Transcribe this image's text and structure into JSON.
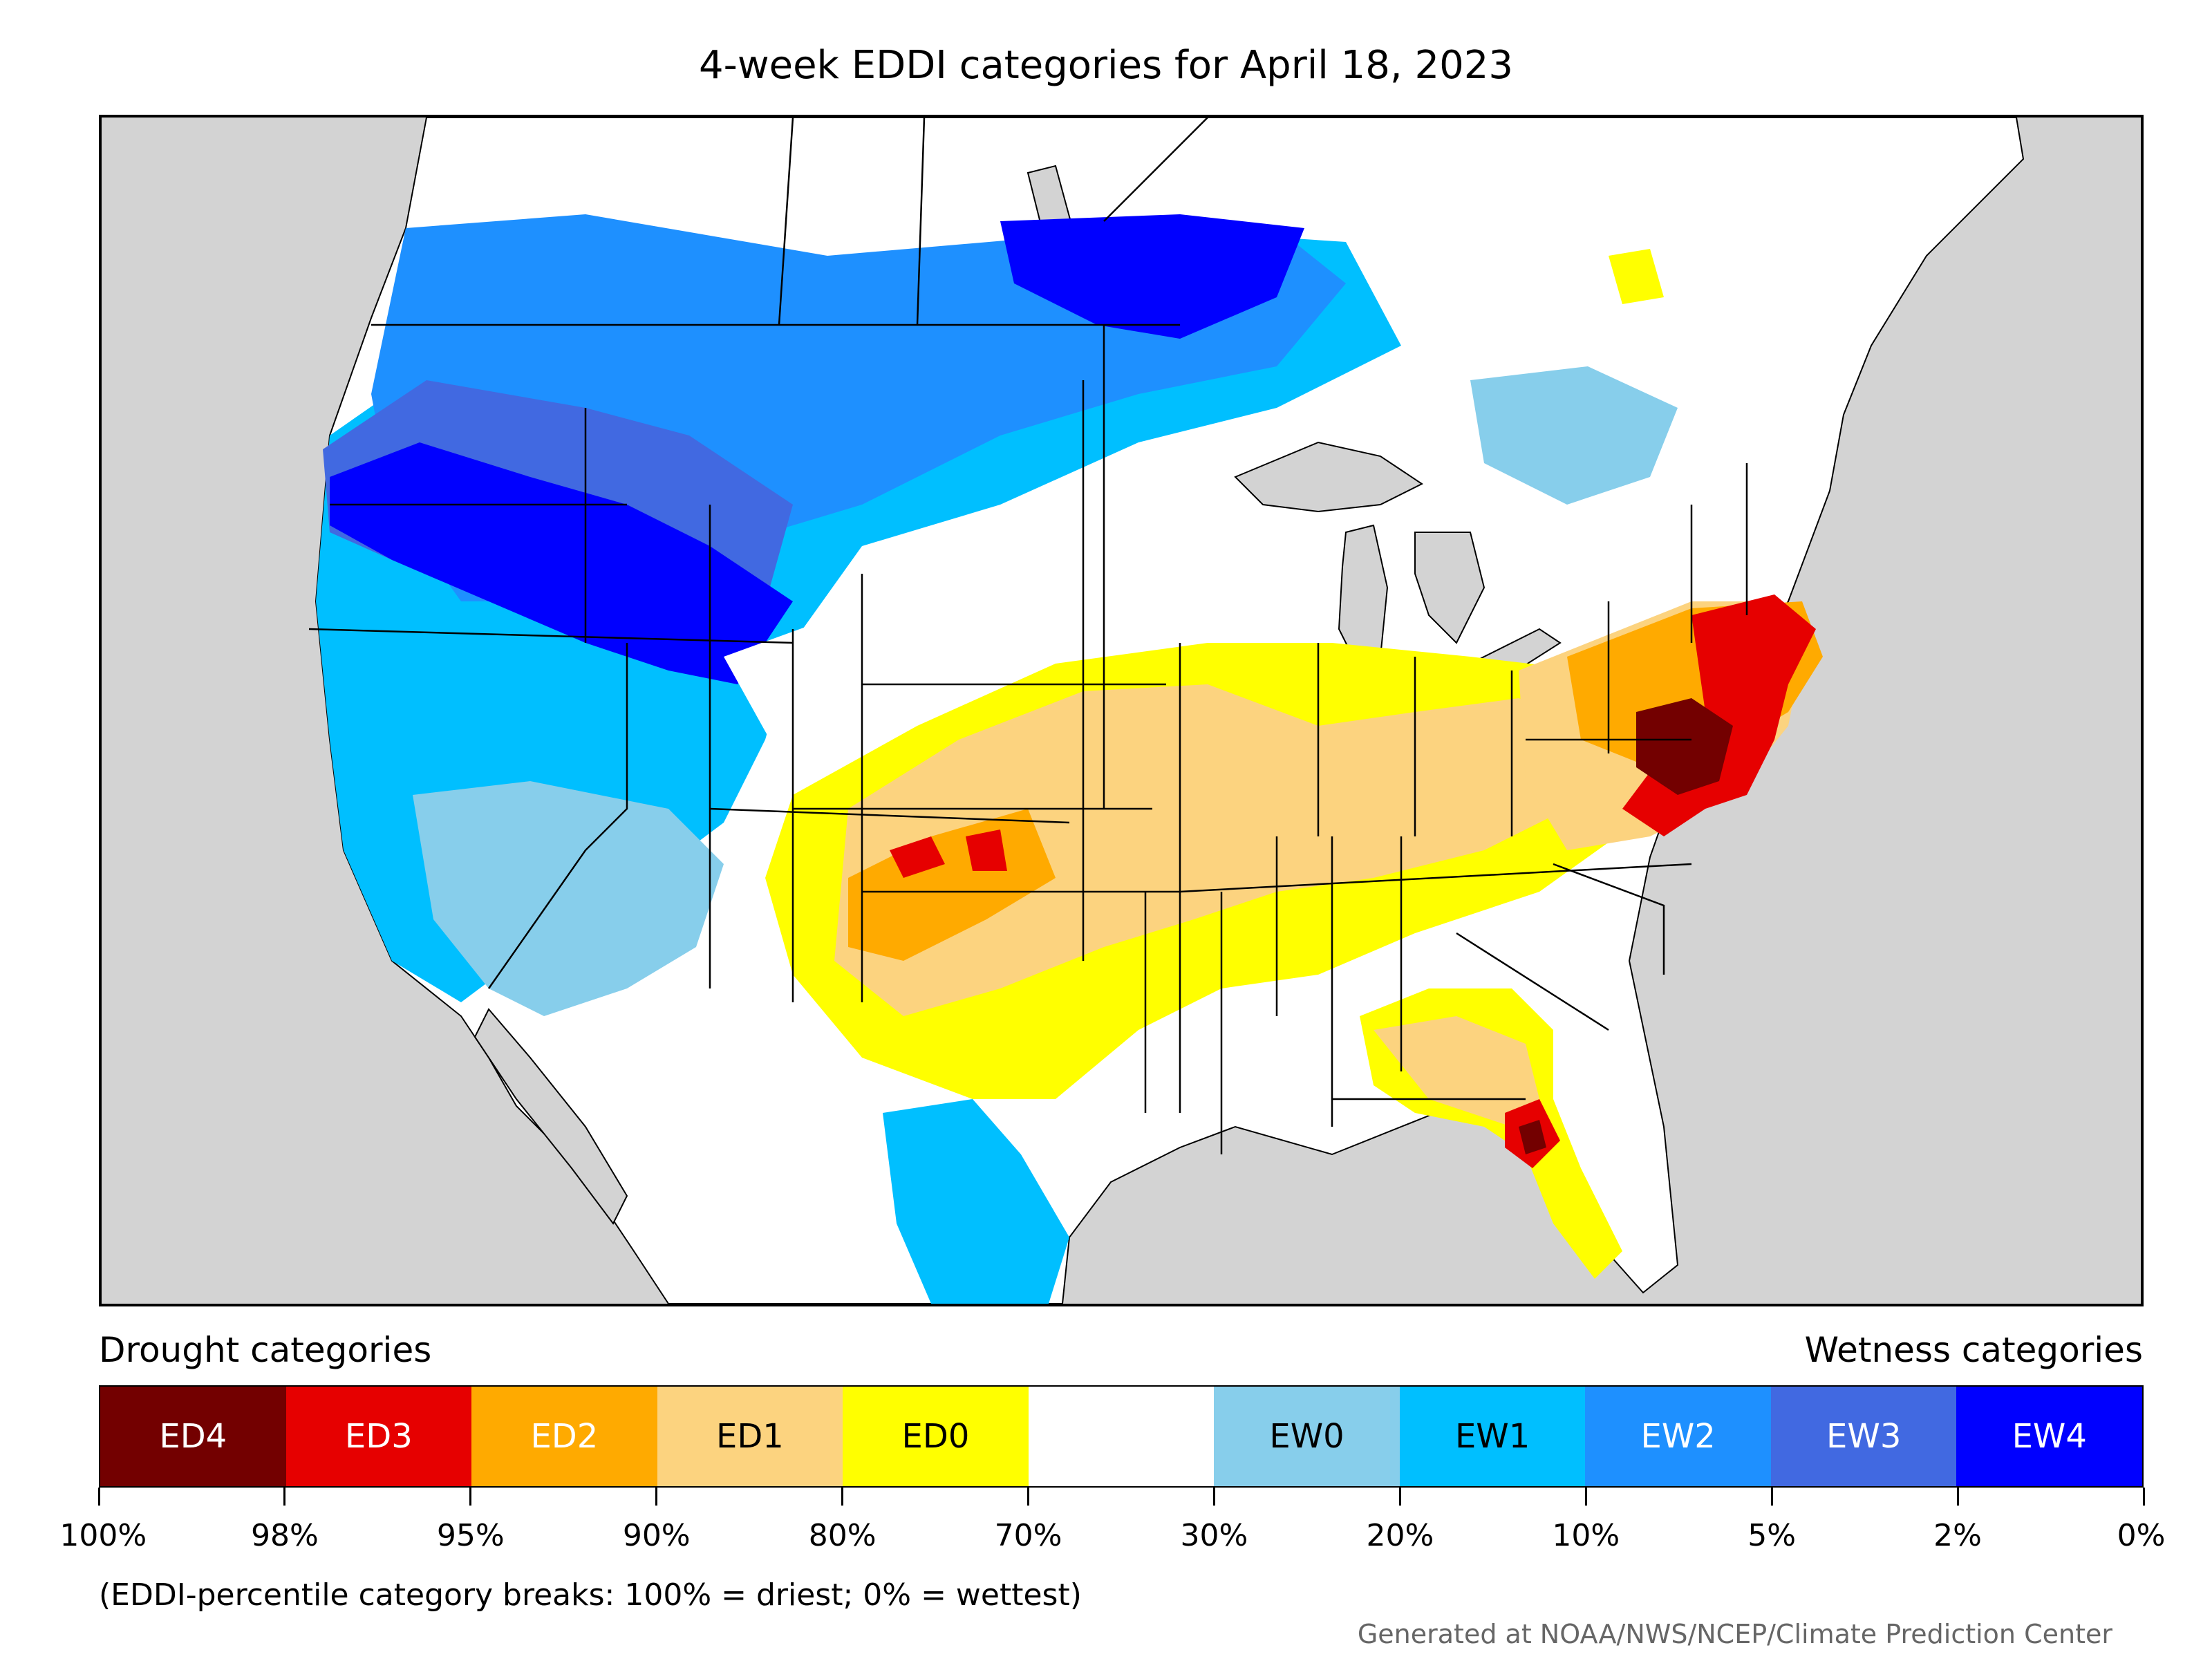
{
  "title": "4-week EDDI categories for April 18, 2023",
  "legend": {
    "left_heading": "Drought categories",
    "right_heading": "Wetness categories",
    "categories": [
      {
        "label": "ED4",
        "color": "#730000",
        "text_color": "#ffffff"
      },
      {
        "label": "ED3",
        "color": "#e60000",
        "text_color": "#ffffff"
      },
      {
        "label": "ED2",
        "color": "#ffaa00",
        "text_color": "#ffffff"
      },
      {
        "label": "ED1",
        "color": "#fcd37f",
        "text_color": "#000000"
      },
      {
        "label": "ED0",
        "color": "#ffff00",
        "text_color": "#000000"
      },
      {
        "label": "",
        "color": "#ffffff",
        "text_color": "#000000"
      },
      {
        "label": "EW0",
        "color": "#87ceeb",
        "text_color": "#000000"
      },
      {
        "label": "EW1",
        "color": "#00bfff",
        "text_color": "#000000"
      },
      {
        "label": "EW2",
        "color": "#1e90ff",
        "text_color": "#ffffff"
      },
      {
        "label": "EW3",
        "color": "#4169e1",
        "text_color": "#ffffff"
      },
      {
        "label": "EW4",
        "color": "#0000ff",
        "text_color": "#ffffff"
      }
    ],
    "breaks": [
      "100%",
      "98%",
      "95%",
      "90%",
      "80%",
      "70%",
      "30%",
      "20%",
      "10%",
      "5%",
      "2%",
      "0%"
    ]
  },
  "note": "(EDDI-percentile category breaks: 100% = driest; 0% = wettest)",
  "credit": "Generated at NOAA/NWS/NCEP/Climate Prediction Center",
  "colors": {
    "ocean": "#d3d3d3",
    "land": "#ffffff",
    "boundary": "#000000"
  }
}
